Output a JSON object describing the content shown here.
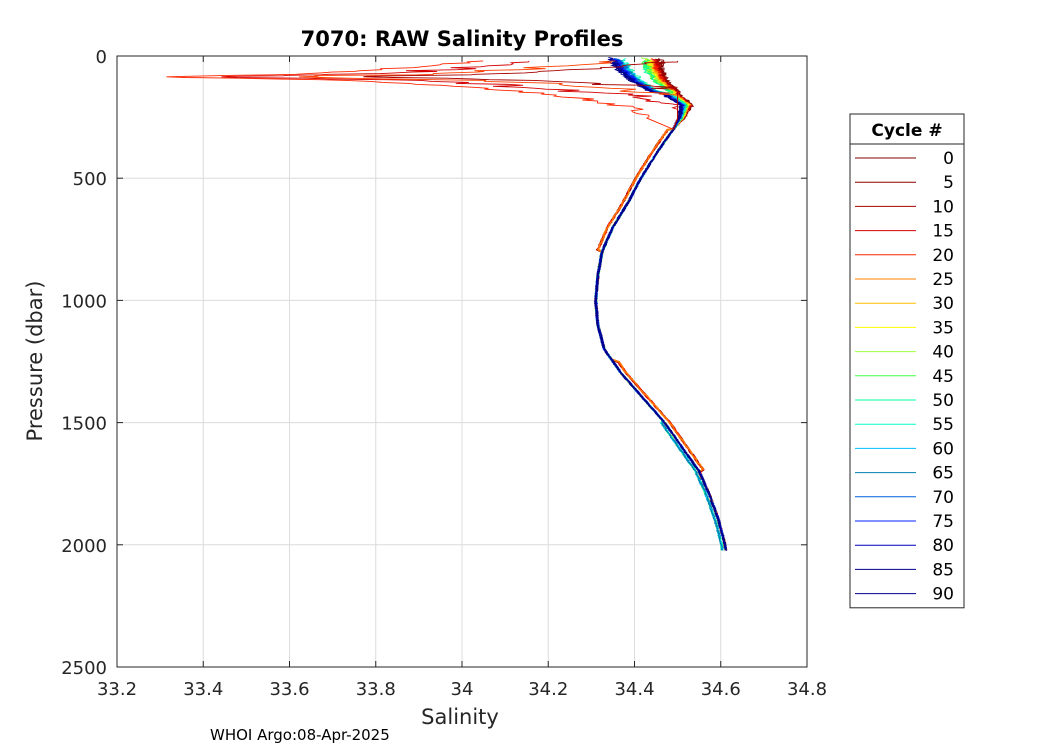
{
  "chart_data": {
    "type": "line",
    "title": "7070: RAW Salinity Profiles",
    "xlabel": "Salinity",
    "ylabel": "Pressure (dbar)",
    "xlim": [
      33.2,
      34.8
    ],
    "ylim": [
      0,
      2500
    ],
    "y_reversed": true,
    "grid": true,
    "xticks": [
      33.2,
      33.4,
      33.6,
      33.8,
      34,
      34.2,
      34.4,
      34.6,
      34.8
    ],
    "xtick_labels": [
      "33.2",
      "33.4",
      "33.6",
      "33.8",
      "34",
      "34.2",
      "34.4",
      "34.6",
      "34.8"
    ],
    "yticks": [
      0,
      500,
      1000,
      1500,
      2000,
      2500
    ],
    "ytick_labels": [
      "0",
      "500",
      "1000",
      "1500",
      "2000",
      "2500"
    ],
    "legend": {
      "title": "Cycle #",
      "position": "outside-right",
      "entries": [
        {
          "label": "0",
          "color": "#800000"
        },
        {
          "label": "5",
          "color": "#8b0000"
        },
        {
          "label": "10",
          "color": "#a80000"
        },
        {
          "label": "15",
          "color": "#d40000"
        },
        {
          "label": "20",
          "color": "#ff2600"
        },
        {
          "label": "25",
          "color": "#ff8000"
        },
        {
          "label": "30",
          "color": "#ffbf00"
        },
        {
          "label": "35",
          "color": "#ffff00"
        },
        {
          "label": "40",
          "color": "#9fff3f"
        },
        {
          "label": "45",
          "color": "#40ff40"
        },
        {
          "label": "50",
          "color": "#00ff9f"
        },
        {
          "label": "55",
          "color": "#00ffcc"
        },
        {
          "label": "60",
          "color": "#00bfff"
        },
        {
          "label": "65",
          "color": "#0080b0"
        },
        {
          "label": "70",
          "color": "#0060e0"
        },
        {
          "label": "75",
          "color": "#0020ff"
        },
        {
          "label": "80",
          "color": "#0000c0"
        },
        {
          "label": "85",
          "color": "#000090"
        },
        {
          "label": "90",
          "color": "#00008b"
        }
      ]
    },
    "base_profile": {
      "pressure": [
        0,
        50,
        100,
        150,
        200,
        250,
        300,
        400,
        500,
        600,
        700,
        800,
        900,
        1000,
        1100,
        1200,
        1300,
        1400,
        1500,
        1600,
        1700,
        1800,
        1900,
        2000,
        2030
      ],
      "salinity": [
        34.41,
        34.42,
        34.44,
        34.48,
        34.52,
        34.51,
        34.49,
        34.45,
        34.415,
        34.385,
        34.35,
        34.325,
        34.315,
        34.31,
        34.315,
        34.33,
        34.37,
        34.42,
        34.47,
        34.51,
        34.55,
        34.575,
        34.595,
        34.61,
        34.612
      ]
    },
    "anomalous_near_surface": {
      "pressure": [
        20,
        40,
        60,
        75,
        85,
        100,
        120,
        140,
        160,
        180,
        200,
        230,
        260
      ],
      "salinity": [
        34.05,
        33.92,
        33.78,
        33.6,
        33.29,
        33.75,
        33.95,
        34.1,
        34.22,
        34.3,
        34.36,
        34.42,
        34.45
      ]
    }
  },
  "footer": "WHOI Argo:08-Apr-2025"
}
